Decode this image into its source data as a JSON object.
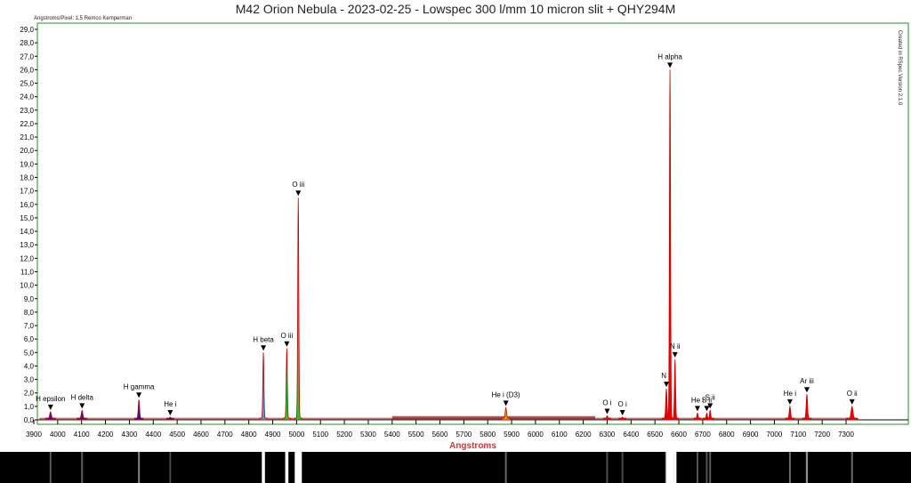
{
  "title": "M42 Orion Nebula - 2023-02-25 - Lowspec 300 l/mm 10 micron slit + QHY294M",
  "meta_label": "Angstroms/Pixel: 1,5 Remco Kemperman",
  "side_note": "Created in RSpec Version 2.1.0",
  "colors": {
    "frame": "#2e8b2e",
    "axis_label": "#e03030",
    "continuum": "#8b1a1a",
    "violet": "#5a0a8a",
    "blue": "#1a1ab0",
    "cyan": "#3aa0e0",
    "green": "#22cc22",
    "orange": "#e8a000",
    "red": "#ee0000"
  },
  "chart_data": {
    "type": "line",
    "title": "M42 Orion Nebula - 2023-02-25 - Lowspec 300 l/mm 10 micron slit + QHY294M",
    "xlabel": "Angstroms",
    "ylabel": "",
    "xlim": [
      3900,
      7350
    ],
    "ylim": [
      0,
      29.5
    ],
    "x_ticks": [
      "3900",
      "4000",
      "4100",
      "4200",
      "4300",
      "4400",
      "4500",
      "4600",
      "4700",
      "4800",
      "4900",
      "5000",
      "5100",
      "5200",
      "5300",
      "5400",
      "5500",
      "5600",
      "5700",
      "5800",
      "5900",
      "6000",
      "6100",
      "6200",
      "6300",
      "6400",
      "6500",
      "6600",
      "6700",
      "6800",
      "6900",
      "7000",
      "7100",
      "7200",
      "7300"
    ],
    "y_ticks": [
      "0,0",
      "1,0",
      "2,0",
      "3,0",
      "4,0",
      "5,0",
      "6,0",
      "7,0",
      "8,0",
      "9,0",
      "10,0",
      "11,0",
      "12,0",
      "13,0",
      "14,0",
      "15,0",
      "16,0",
      "17,0",
      "18,0",
      "19,0",
      "20,0",
      "21,0",
      "22,0",
      "23,0",
      "24,0",
      "25,0",
      "26,0",
      "27,0",
      "28,0",
      "29,0"
    ],
    "continuum_level": 0.12,
    "lines": [
      {
        "label": "H epsilon",
        "x": 3970,
        "y": 0.6,
        "color": "violet",
        "sigma": 7
      },
      {
        "label": "H delta",
        "x": 4102,
        "y": 0.7,
        "color": "violet",
        "sigma": 7
      },
      {
        "label": "H gamma",
        "x": 4340,
        "y": 1.5,
        "color": "blue",
        "sigma": 6
      },
      {
        "label": "He i",
        "x": 4471,
        "y": 0.2,
        "color": "blue",
        "sigma": 5
      },
      {
        "label": "H beta",
        "x": 4861,
        "y": 5.0,
        "color": "cyan",
        "sigma": 5
      },
      {
        "label": "O iii",
        "x": 4959,
        "y": 5.3,
        "color": "green",
        "sigma": 5
      },
      {
        "label": "O iii",
        "x": 5007,
        "y": 16.5,
        "color": "green",
        "sigma": 5
      },
      {
        "label": "He i (D3)",
        "x": 5876,
        "y": 0.9,
        "color": "orange",
        "sigma": 6
      },
      {
        "label": "O i",
        "x": 6300,
        "y": 0.3,
        "color": "red",
        "sigma": 5
      },
      {
        "label": "O i",
        "x": 6364,
        "y": 0.2,
        "color": "red",
        "sigma": 5
      },
      {
        "label": "N ii",
        "x": 6548,
        "y": 2.3,
        "color": "red",
        "sigma": 6
      },
      {
        "label": "H alpha",
        "x": 6563,
        "y": 26.0,
        "color": "red",
        "sigma": 5
      },
      {
        "label": "N ii",
        "x": 6584,
        "y": 4.5,
        "color": "red",
        "sigma": 5
      },
      {
        "label": "He i",
        "x": 6678,
        "y": 0.5,
        "color": "red",
        "sigma": 5
      },
      {
        "label": "S ii",
        "x": 6717,
        "y": 0.5,
        "color": "red",
        "sigma": 5
      },
      {
        "label": "S ii",
        "x": 6731,
        "y": 0.7,
        "color": "red",
        "sigma": 5
      },
      {
        "label": "He i",
        "x": 7065,
        "y": 1.0,
        "color": "red",
        "sigma": 6
      },
      {
        "label": "Ar iii",
        "x": 7136,
        "y": 1.9,
        "color": "red",
        "sigma": 6
      },
      {
        "label": "O ii",
        "x": 7325,
        "y": 1.0,
        "color": "red",
        "sigma": 8
      }
    ],
    "grid": false,
    "legend": "none"
  }
}
